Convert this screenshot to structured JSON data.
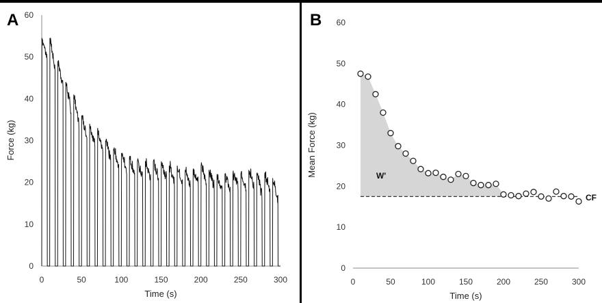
{
  "panels": {
    "a_label": "A",
    "b_label": "B"
  },
  "annotations": {
    "w_prime": "W'",
    "cf": "CF"
  },
  "chart_data": [
    {
      "type": "line",
      "panel": "A",
      "xlabel": "Time (s)",
      "ylabel": "Force (kg)",
      "xlim": [
        0,
        300
      ],
      "ylim": [
        0,
        60
      ],
      "xticks": [
        0,
        50,
        100,
        150,
        200,
        250,
        300
      ],
      "yticks": [
        0,
        10,
        20,
        30,
        40,
        50,
        60
      ],
      "grid": false,
      "series": [
        {
          "description": "force trace of 30 repeated contractions (≈7 s on, ≈3 s off)",
          "contraction_start_s": [
            0,
            10,
            20,
            30,
            40,
            50,
            60,
            70,
            80,
            90,
            100,
            110,
            120,
            130,
            140,
            150,
            160,
            170,
            180,
            190,
            200,
            210,
            220,
            230,
            240,
            250,
            260,
            270,
            280,
            290
          ],
          "contraction_duration_s": 7,
          "peak_force_kg": [
            54.5,
            54.5,
            49,
            44,
            41,
            36,
            34,
            33,
            30,
            28,
            27,
            26,
            25,
            25,
            25,
            25,
            24,
            24,
            23,
            23,
            24,
            23,
            22,
            22,
            22,
            22,
            23,
            22,
            22,
            21
          ],
          "end_force_kg": [
            50,
            47,
            43,
            37,
            34,
            31,
            29,
            27,
            25,
            24,
            23,
            22,
            21,
            21,
            21,
            21,
            20,
            20,
            19,
            20,
            20,
            19,
            18,
            18,
            19,
            19,
            19,
            17,
            18,
            16
          ]
        }
      ]
    },
    {
      "type": "scatter",
      "panel": "B",
      "xlabel": "Time (s)",
      "ylabel": "Mean Force (kg)",
      "xlim": [
        0,
        300
      ],
      "ylim": [
        0,
        60
      ],
      "xticks": [
        0,
        50,
        100,
        150,
        200,
        250,
        300
      ],
      "yticks": [
        0,
        10,
        20,
        30,
        40,
        50,
        60
      ],
      "grid": false,
      "x": [
        10,
        20,
        30,
        40,
        50,
        60,
        70,
        80,
        90,
        100,
        110,
        120,
        130,
        140,
        150,
        160,
        170,
        180,
        190,
        200,
        210,
        220,
        230,
        240,
        250,
        260,
        270,
        280,
        290,
        300
      ],
      "y": [
        47.5,
        46.8,
        42.5,
        38.0,
        33.0,
        29.8,
        28.0,
        26.2,
        24.2,
        23.2,
        23.3,
        22.3,
        21.6,
        23.0,
        22.5,
        20.8,
        20.3,
        20.3,
        20.6,
        18.0,
        17.8,
        17.6,
        18.2,
        18.6,
        17.5,
        17.0,
        18.7,
        17.6,
        17.5,
        16.3
      ],
      "cf_line": {
        "y": 17.5,
        "x_from": 10,
        "x_to": 300
      },
      "shaded_area": {
        "label": "W'",
        "x_from": 10,
        "x_to": 200
      }
    }
  ]
}
